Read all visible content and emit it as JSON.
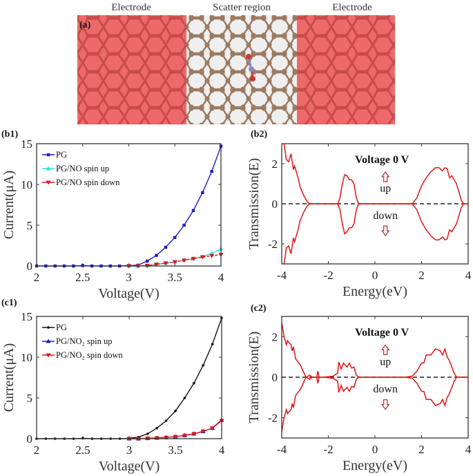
{
  "panel_a": {
    "label": "(a)",
    "headers": [
      "Electrode",
      "Scatter region",
      "Electrode"
    ],
    "colors": {
      "electrode": "#ee6a6a",
      "bond": "#c94b4b",
      "scatter_bg": "#efefef",
      "atom": "#9c7b63"
    }
  },
  "chart_data": [
    {
      "id": "b1",
      "panel_label": "(b1)",
      "type": "line",
      "xlabel": "Voltage(V)",
      "ylabel": "Current(μA)",
      "xlim": [
        2,
        4
      ],
      "ylim": [
        0,
        15
      ],
      "xticks": [
        "2",
        "2.5",
        "3",
        "3.5",
        "4"
      ],
      "yticks": [
        "0",
        "5",
        "10",
        "15"
      ],
      "grid": false,
      "legend": "top-left",
      "x": [
        2.0,
        2.1,
        2.2,
        2.3,
        2.4,
        2.5,
        2.6,
        2.7,
        2.8,
        2.9,
        3.0,
        3.1,
        3.2,
        3.3,
        3.4,
        3.5,
        3.6,
        3.7,
        3.8,
        3.9,
        4.0
      ],
      "series": [
        {
          "name": "PG",
          "color": "#1c1ccc",
          "marker": "square",
          "dashed": false,
          "values": [
            0,
            0,
            0,
            0,
            0,
            0.05,
            0,
            0,
            0,
            0,
            0.05,
            0.1,
            0.6,
            1.3,
            2.3,
            3.5,
            5.0,
            6.8,
            9.0,
            11.6,
            14.7
          ]
        },
        {
          "name": "PG/NO  spin up",
          "color": "#33dede",
          "marker": "triangle-up",
          "dashed": false,
          "values": [
            null,
            null,
            null,
            null,
            null,
            null,
            null,
            null,
            null,
            null,
            0,
            0,
            0.05,
            0.2,
            0.35,
            0.5,
            0.7,
            0.9,
            1.15,
            1.55,
            2.1
          ]
        },
        {
          "name": "PG/NO  spin down",
          "color": "#dd1818",
          "marker": "triangle-down",
          "dashed": true,
          "values": [
            null,
            null,
            null,
            null,
            null,
            null,
            null,
            null,
            null,
            null,
            0,
            0,
            0.05,
            0.2,
            0.35,
            0.5,
            0.7,
            0.9,
            1.1,
            1.25,
            1.4
          ]
        }
      ]
    },
    {
      "id": "b2",
      "panel_label": "(b2)",
      "type": "line",
      "xlabel": "Energy(eV)",
      "ylabel": "Transmission(E)",
      "xlim": [
        -4,
        4
      ],
      "ylim": [
        -3,
        3
      ],
      "xticks": [
        "-4",
        "-2",
        "0",
        "2",
        "4"
      ],
      "yticks": [
        "-2",
        "0",
        "2"
      ],
      "grid": false,
      "title": "Voltage 0 V",
      "annotations": {
        "up": "up",
        "down": "down"
      },
      "colors": {
        "line": "#e01414",
        "zero_line": "#222222",
        "arrow": "#b03030"
      },
      "x": [
        -3.9,
        -3.8,
        -3.7,
        -3.6,
        -3.5,
        -3.45,
        -3.3,
        -3.2,
        -3.05,
        -3.0,
        -2.95,
        -2.9,
        -2.8,
        -1.6,
        -1.5,
        -1.4,
        -1.3,
        -1.2,
        -1.1,
        -1.0,
        -0.95,
        -0.9,
        -0.8,
        -0.7,
        1.6,
        1.8,
        2.0,
        2.2,
        2.4,
        2.6,
        2.75,
        2.9,
        3.0,
        3.1,
        3.2,
        3.3,
        3.4,
        3.5,
        3.6,
        3.7,
        3.8,
        4.0
      ],
      "series": [
        {
          "name": "up",
          "values": [
            3.0,
            2.2,
            2.1,
            2.5,
            1.7,
            1.9,
            1.3,
            0.8,
            0.4,
            0.3,
            0.2,
            0.1,
            0,
            0,
            0.3,
            1.0,
            1.45,
            1.4,
            1.2,
            1.2,
            1.1,
            1.0,
            0.3,
            0,
            0,
            0.3,
            0.9,
            1.3,
            1.6,
            1.8,
            1.8,
            1.65,
            1.8,
            1.75,
            1.3,
            1.4,
            1.2,
            1.0,
            0.6,
            0.2,
            0,
            0
          ]
        },
        {
          "name": "down",
          "values": [
            -3.0,
            -2.2,
            -2.1,
            -2.5,
            -1.7,
            -1.9,
            -1.3,
            -0.8,
            -0.4,
            -0.3,
            -0.2,
            -0.1,
            0,
            0,
            -0.3,
            -1.0,
            -1.5,
            -1.4,
            -1.2,
            -1.2,
            -1.1,
            -1.0,
            -0.3,
            0,
            0,
            -0.3,
            -0.9,
            -1.3,
            -1.6,
            -1.8,
            -1.8,
            -1.65,
            -1.8,
            -1.75,
            -1.3,
            -1.4,
            -1.2,
            -1.0,
            -0.6,
            -0.2,
            0,
            0
          ]
        }
      ]
    },
    {
      "id": "c1",
      "panel_label": "(c1)",
      "type": "line",
      "xlabel": "Voltage(V)",
      "ylabel": "Current(μA)",
      "xlim": [
        2,
        4
      ],
      "ylim": [
        0,
        15
      ],
      "xticks": [
        "2",
        "2.5",
        "3",
        "3.5",
        "4"
      ],
      "yticks": [
        "0",
        "5",
        "10",
        "15"
      ],
      "grid": false,
      "legend": "top-left",
      "x": [
        2.0,
        2.1,
        2.2,
        2.3,
        2.4,
        2.5,
        2.6,
        2.7,
        2.8,
        2.9,
        3.0,
        3.1,
        3.2,
        3.3,
        3.4,
        3.5,
        3.6,
        3.7,
        3.8,
        3.9,
        4.0
      ],
      "series": [
        {
          "name": "PG",
          "color": "#111111",
          "marker": "dot",
          "dashed": false,
          "values": [
            0,
            0,
            0,
            0,
            0,
            0.05,
            0,
            0,
            0,
            0,
            0.05,
            0.2,
            0.6,
            1.3,
            2.2,
            3.4,
            5.0,
            6.8,
            9.0,
            11.6,
            14.8
          ]
        },
        {
          "name": "PG/NO₂ spin up",
          "color": "#1c1ccc",
          "marker": "triangle-up",
          "dashed": false,
          "values": [
            null,
            null,
            null,
            null,
            null,
            null,
            null,
            null,
            null,
            null,
            0,
            0,
            0.05,
            0.1,
            0.15,
            0.25,
            0.4,
            0.6,
            0.9,
            1.3,
            2.3
          ]
        },
        {
          "name": "PG/NO₂ spin down",
          "color": "#dd1818",
          "marker": "triangle-down",
          "dashed": false,
          "values": [
            null,
            null,
            null,
            null,
            null,
            null,
            null,
            null,
            null,
            null,
            0,
            0,
            0.05,
            0.1,
            0.15,
            0.25,
            0.4,
            0.6,
            0.9,
            1.3,
            2.2
          ]
        }
      ]
    },
    {
      "id": "c2",
      "panel_label": "(c2)",
      "type": "line",
      "xlabel": "Energy(eV)",
      "ylabel": "Transmission(E)",
      "xlim": [
        -4,
        4
      ],
      "ylim": [
        -3,
        3
      ],
      "xticks": [
        "-4",
        "-2",
        "0",
        "2",
        "4"
      ],
      "yticks": [
        "-2",
        "0",
        "2"
      ],
      "grid": false,
      "title": "Voltage 0 V",
      "annotations": {
        "up": "up",
        "down": "down"
      },
      "colors": {
        "line": "#e01414",
        "zero_line": "#222222",
        "arrow": "#b03030"
      },
      "x": [
        -4.0,
        -3.9,
        -3.8,
        -3.75,
        -3.6,
        -3.55,
        -3.5,
        -3.4,
        -3.2,
        -3.0,
        -2.95,
        -2.8,
        -2.7,
        -2.5,
        -2.45,
        -2.4,
        -2.2,
        -1.8,
        -1.6,
        -1.55,
        -1.45,
        -1.35,
        -1.2,
        -1.1,
        -1.0,
        -0.9,
        -0.8,
        -0.7,
        1.3,
        1.6,
        1.8,
        2.0,
        2.1,
        2.2,
        2.4,
        2.6,
        2.8,
        2.9,
        3.0,
        3.1,
        3.2,
        3.4,
        3.5,
        4.0
      ],
      "series": [
        {
          "name": "up",
          "values": [
            2.7,
            2.0,
            1.6,
            1.8,
            1.6,
            1.3,
            1.5,
            0.9,
            0.6,
            0.1,
            0,
            0.1,
            0,
            0,
            0.3,
            0,
            0,
            0.05,
            0.2,
            0.75,
            0.4,
            0.7,
            0.5,
            0.7,
            0.45,
            0.5,
            0.1,
            0,
            0,
            0.05,
            0.3,
            0.7,
            0.7,
            1.1,
            1.1,
            1.4,
            1.3,
            1.1,
            1.4,
            1.0,
            0.8,
            0.2,
            0,
            0
          ]
        },
        {
          "name": "down",
          "values": [
            -2.7,
            -2.0,
            -1.6,
            -1.8,
            -1.6,
            -1.3,
            -1.5,
            -0.9,
            -0.6,
            -0.1,
            0,
            -0.1,
            0,
            0,
            -0.3,
            0,
            0,
            -0.05,
            -0.2,
            -0.75,
            -0.4,
            -0.7,
            -0.5,
            -0.7,
            -0.45,
            -0.5,
            -0.1,
            0,
            0,
            -0.05,
            -0.3,
            -0.7,
            -0.7,
            -1.1,
            -1.1,
            -1.4,
            -1.3,
            -1.1,
            -1.4,
            -1.0,
            -0.8,
            -0.2,
            0,
            0
          ]
        }
      ]
    }
  ]
}
